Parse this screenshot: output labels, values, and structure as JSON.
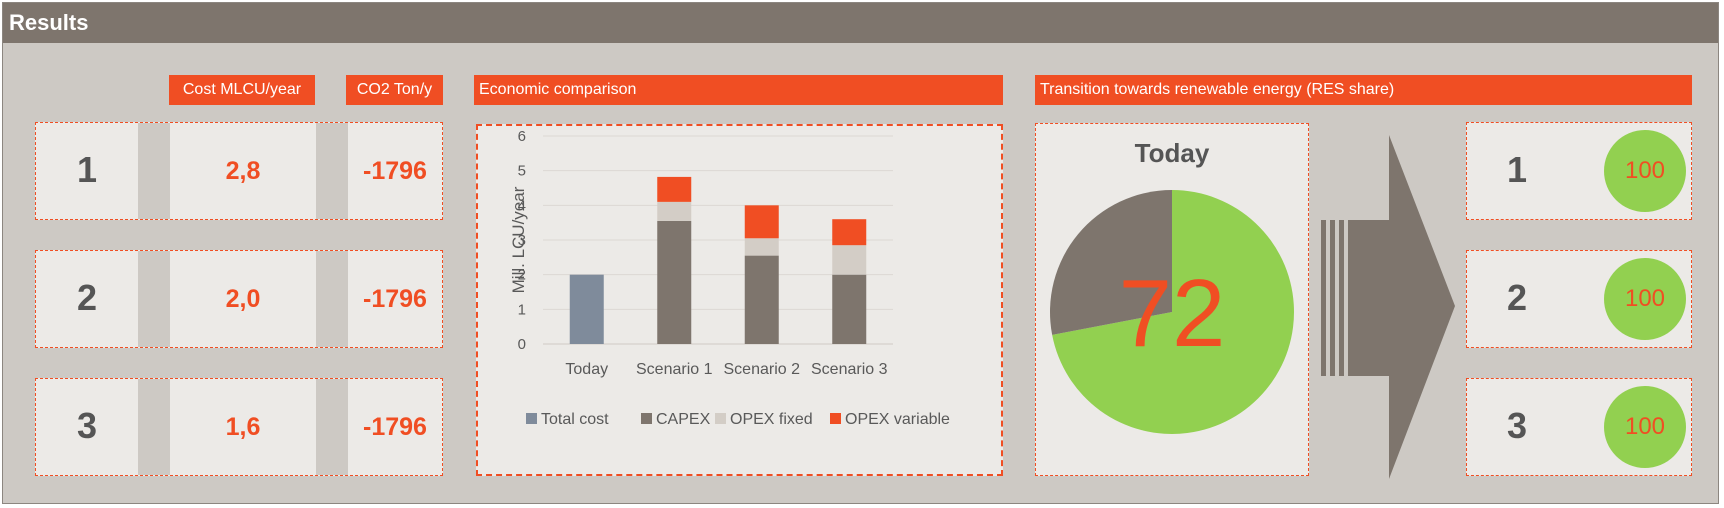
{
  "panel": {
    "title": "Results"
  },
  "table": {
    "headers": {
      "cost": "Cost MLCU/year",
      "co2": "CO2 Ton/y"
    },
    "rows": [
      {
        "scenario": "1",
        "cost": "2,8",
        "co2": "-1796"
      },
      {
        "scenario": "2",
        "cost": "2,0",
        "co2": "-1796"
      },
      {
        "scenario": "3",
        "cost": "1,6",
        "co2": "-1796"
      }
    ]
  },
  "economic": {
    "header": "Economic comparison"
  },
  "chart_data": [
    {
      "type": "bar",
      "stacked": true,
      "categories": [
        "Today",
        "Scenario 1",
        "Scenario 2",
        "Scenario 3"
      ],
      "series": [
        {
          "name": "Total cost",
          "color": "#7f8b9b",
          "values": [
            2.0,
            0,
            0,
            0
          ]
        },
        {
          "name": "CAPEX",
          "color": "#7e756d",
          "values": [
            0,
            3.55,
            2.55,
            2.0
          ]
        },
        {
          "name": "OPEX fixed",
          "color": "#d3cdc6",
          "values": [
            0,
            0.55,
            0.5,
            0.85
          ]
        },
        {
          "name": "OPEX variable",
          "color": "#f04e23",
          "values": [
            0,
            0.72,
            0.95,
            0.75
          ]
        }
      ],
      "ylabel": "Mill. LCU/year",
      "ylim": [
        0,
        6
      ],
      "yticks": [
        "0",
        "1",
        "2",
        "3",
        "4",
        "5",
        "6"
      ],
      "grid": true,
      "legend": "bottom"
    },
    {
      "type": "pie",
      "title": "Today",
      "center_label": "72",
      "slices": [
        {
          "value": 72,
          "color": "#92d050"
        },
        {
          "value": 28,
          "color": "#7e756d"
        }
      ]
    }
  ],
  "res": {
    "header": "Transition towards renewable energy (RES share)",
    "scenarios": [
      {
        "label": "1",
        "share": "100"
      },
      {
        "label": "2",
        "share": "100"
      },
      {
        "label": "3",
        "share": "100"
      }
    ]
  },
  "colors": {
    "accent": "#f04e23",
    "brown": "#7e756d",
    "green": "#92d050",
    "background": "#cdc9c4"
  }
}
